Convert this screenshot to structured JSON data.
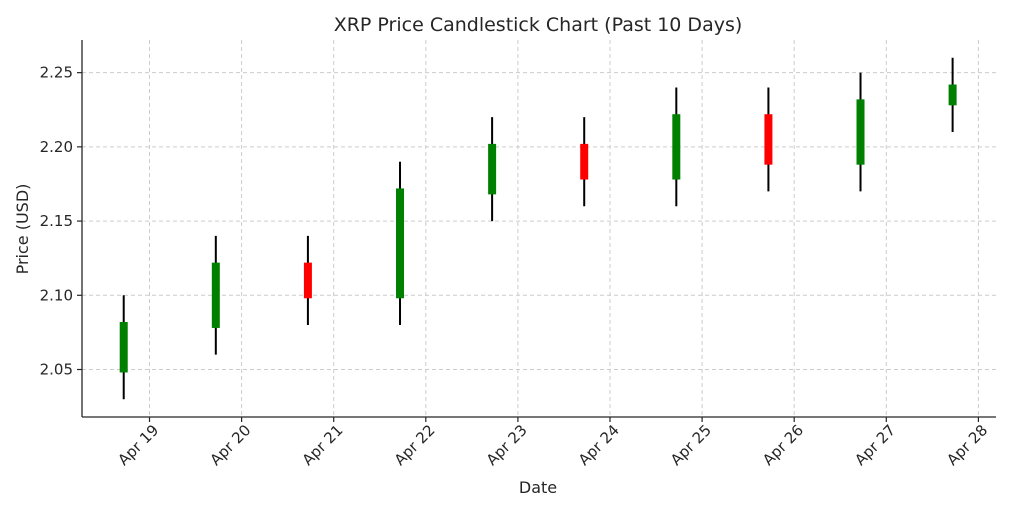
{
  "chart_data": {
    "type": "candlestick",
    "title": "XRP Price Candlestick Chart (Past 10 Days)",
    "xlabel": "Date",
    "ylabel": "Price (USD)",
    "ylim": [
      2.018,
      2.272
    ],
    "y_ticks": [
      "2.05",
      "2.10",
      "2.15",
      "2.20",
      "2.25"
    ],
    "x_ticks": [
      "Apr 19",
      "Apr 20",
      "Apr 21",
      "Apr 22",
      "Apr 23",
      "Apr 24",
      "Apr 25",
      "Apr 26",
      "Apr 27",
      "Apr 28"
    ],
    "grid": true,
    "colors": {
      "up": "#008000",
      "down": "#ff0000",
      "wick": "#000000"
    },
    "candles": [
      {
        "date": "Apr 18",
        "open": 2.048,
        "high": 2.1,
        "low": 2.03,
        "close": 2.082
      },
      {
        "date": "Apr 19",
        "open": 2.078,
        "high": 2.14,
        "low": 2.06,
        "close": 2.122
      },
      {
        "date": "Apr 20",
        "open": 2.122,
        "high": 2.14,
        "low": 2.08,
        "close": 2.098
      },
      {
        "date": "Apr 21",
        "open": 2.098,
        "high": 2.19,
        "low": 2.08,
        "close": 2.172
      },
      {
        "date": "Apr 22",
        "open": 2.168,
        "high": 2.22,
        "low": 2.15,
        "close": 2.202
      },
      {
        "date": "Apr 23",
        "open": 2.202,
        "high": 2.22,
        "low": 2.16,
        "close": 2.178
      },
      {
        "date": "Apr 24",
        "open": 2.178,
        "high": 2.24,
        "low": 2.16,
        "close": 2.222
      },
      {
        "date": "Apr 25",
        "open": 2.222,
        "high": 2.24,
        "low": 2.17,
        "close": 2.188
      },
      {
        "date": "Apr 26",
        "open": 2.188,
        "high": 2.25,
        "low": 2.17,
        "close": 2.232
      },
      {
        "date": "Apr 27",
        "open": 2.228,
        "high": 2.26,
        "low": 2.21,
        "close": 2.242
      }
    ]
  }
}
